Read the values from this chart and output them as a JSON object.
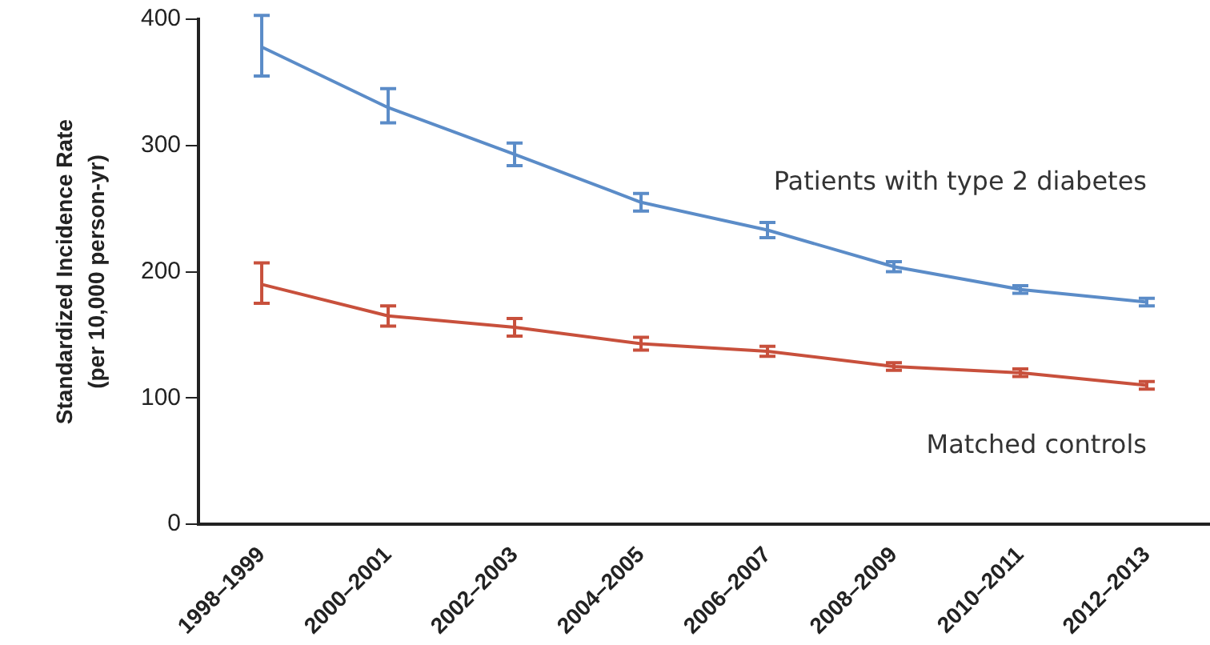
{
  "chart_data": {
    "type": "line",
    "ylabel": "Standardized Incidence Rate\n(per 10,000 person-yr)",
    "categories": [
      "1998–1999",
      "2000–2001",
      "2002–2003",
      "2004–2005",
      "2006–2007",
      "2008–2009",
      "2010–2011",
      "2012–2013"
    ],
    "series": [
      {
        "name": "Patients with type 2 diabetes",
        "color": "#5b8cc8",
        "values": [
          378,
          330,
          293,
          255,
          233,
          204,
          186,
          176
        ],
        "errors": [
          [
            355,
            403
          ],
          [
            318,
            345
          ],
          [
            284,
            302
          ],
          [
            248,
            262
          ],
          [
            227,
            239
          ],
          [
            200,
            208
          ],
          [
            183,
            189
          ],
          [
            173,
            179
          ]
        ]
      },
      {
        "name": "Matched controls",
        "color": "#c8503c",
        "values": [
          190,
          165,
          156,
          143,
          137,
          125,
          120,
          110
        ],
        "errors": [
          [
            175,
            207
          ],
          [
            157,
            173
          ],
          [
            149,
            163
          ],
          [
            138,
            148
          ],
          [
            133,
            141
          ],
          [
            122,
            128
          ],
          [
            117,
            123
          ],
          [
            107,
            113
          ]
        ]
      }
    ],
    "ylim": [
      0,
      400
    ],
    "yticks": [
      0,
      100,
      200,
      300,
      400
    ],
    "grid": false,
    "legend": false,
    "line_style": "solid"
  }
}
